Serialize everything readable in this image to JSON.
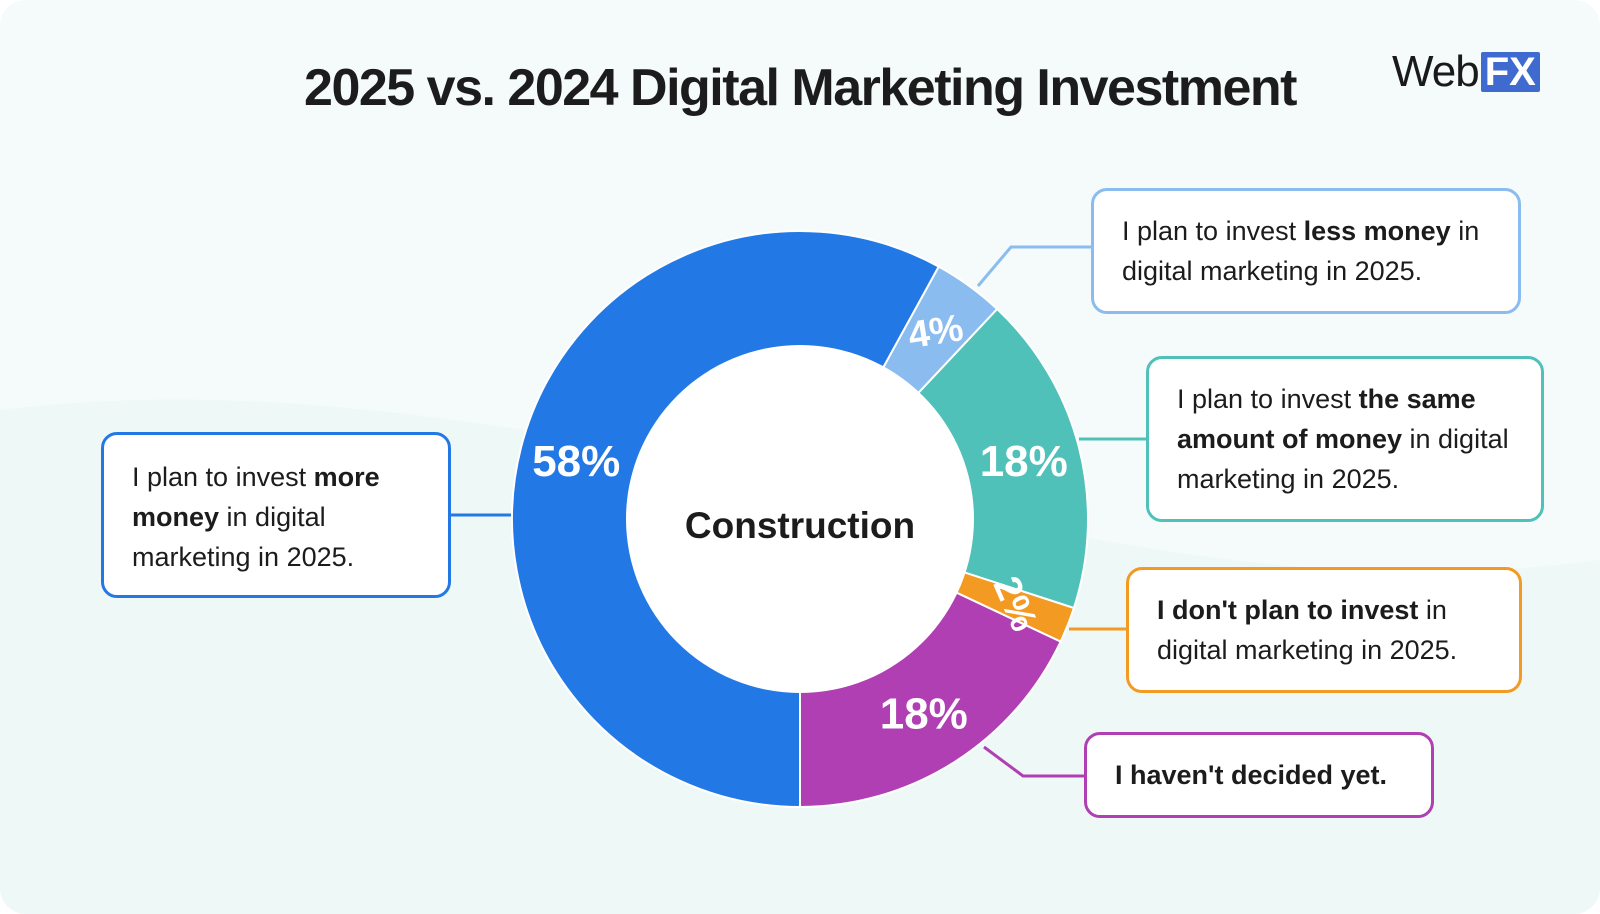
{
  "header": {
    "title": "2025 vs. 2024 Digital Marketing Investment",
    "logo_word": "Web",
    "logo_mark": "FX"
  },
  "chart_data": {
    "type": "pie",
    "title": "2025 vs. 2024 Digital Marketing Investment",
    "center_label": "Construction",
    "slices": [
      {
        "key": "more",
        "value": 58,
        "label": "58%",
        "color": "#2279e6"
      },
      {
        "key": "less",
        "value": 4,
        "label": "4%",
        "color": "#8bbcf0"
      },
      {
        "key": "same",
        "value": 18,
        "label": "18%",
        "color": "#4fc1b9"
      },
      {
        "key": "none",
        "value": 2,
        "label": "2%",
        "color": "#f39a22"
      },
      {
        "key": "undecided",
        "value": 18,
        "label": "18%",
        "color": "#b03fb4"
      }
    ]
  },
  "callouts": {
    "more": {
      "pre": "I plan to invest ",
      "bold": "more money",
      "post": " in digital marketing in 2025."
    },
    "less": {
      "pre": "I plan to invest ",
      "bold": "less money",
      "post": " in digital marketing in 2025."
    },
    "same": {
      "pre": "I plan to invest ",
      "bold": "the same amount of money",
      "post": " in digital marketing in 2025."
    },
    "none": {
      "pre": "",
      "bold": "I don't plan to invest",
      "post": " in digital marketing in 2025."
    },
    "undecided": {
      "pre": "",
      "bold": "I haven't decided yet.",
      "post": ""
    }
  }
}
